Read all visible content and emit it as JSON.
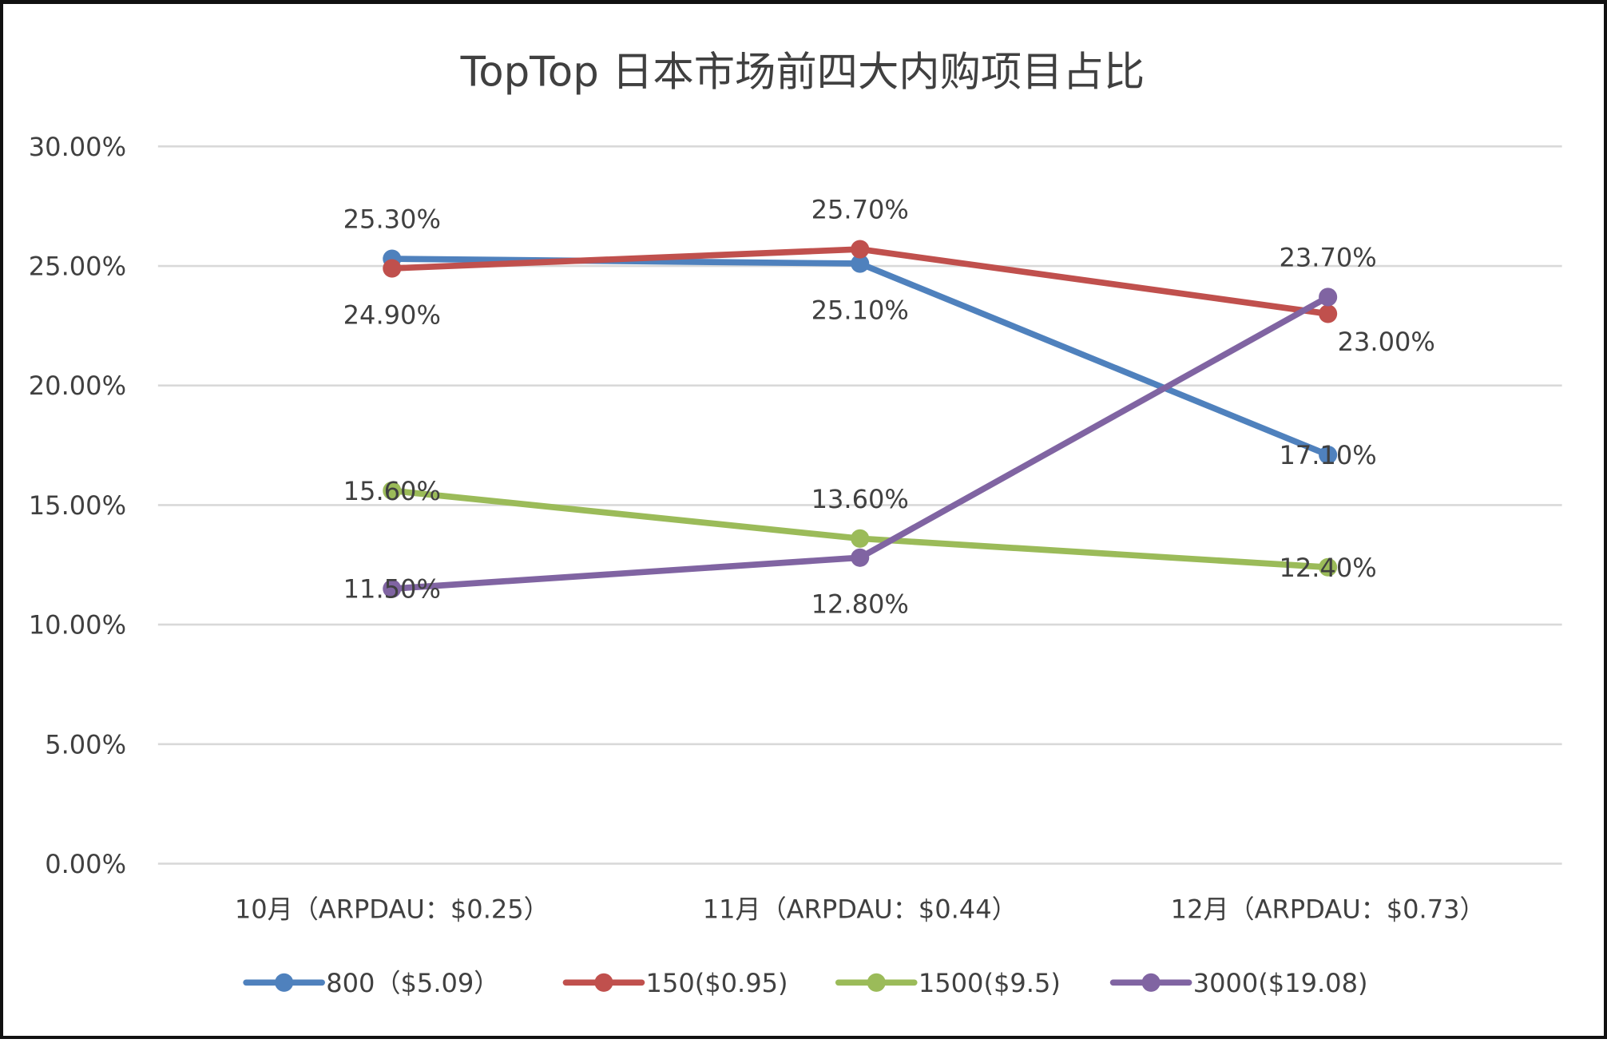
{
  "chart_data": {
    "type": "line",
    "title": "TopTop 日本市场前四大内购项目占比",
    "xlabel": "",
    "ylabel": "",
    "categories": [
      "10月（ARPDAU：$0.25）",
      "11月（ARPDAU：$0.44）",
      "12月（ARPDAU：$0.73）"
    ],
    "ylim": [
      0,
      30
    ],
    "yticks": [
      0,
      5,
      10,
      15,
      20,
      25,
      30
    ],
    "ytick_labels": [
      "0.00%",
      "5.00%",
      "10.00%",
      "15.00%",
      "20.00%",
      "25.00%",
      "30.00%"
    ],
    "grid": true,
    "legend_position": "bottom",
    "series": [
      {
        "name": "800（$5.09）",
        "color": "#4f81bd",
        "values": [
          25.3,
          25.1,
          17.1
        ],
        "labels": [
          "25.30%",
          "25.10%",
          "17.10%"
        ],
        "label_pos": [
          "above",
          "below",
          "center"
        ]
      },
      {
        "name": "150($0.95)",
        "color": "#c0504d",
        "values": [
          24.9,
          25.7,
          23.0
        ],
        "labels": [
          "24.90%",
          "25.70%",
          "23.00%"
        ],
        "label_pos": [
          "below",
          "above",
          "right-below"
        ]
      },
      {
        "name": "1500($9.5)",
        "color": "#9bbb59",
        "values": [
          15.6,
          13.6,
          12.4
        ],
        "labels": [
          "15.60%",
          "13.60%",
          "12.40%"
        ],
        "label_pos": [
          "center",
          "above",
          "center"
        ]
      },
      {
        "name": "3000($19.08)",
        "color": "#8064a2",
        "values": [
          11.5,
          12.8,
          23.7
        ],
        "labels": [
          "11.50%",
          "12.80%",
          "23.70%"
        ],
        "label_pos": [
          "center",
          "below",
          "above"
        ]
      }
    ]
  }
}
